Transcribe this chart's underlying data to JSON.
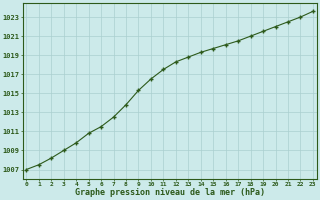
{
  "x": [
    0,
    1,
    2,
    3,
    4,
    5,
    6,
    7,
    8,
    9,
    10,
    11,
    12,
    13,
    14,
    15,
    16,
    17,
    18,
    19,
    20,
    21,
    22,
    23
  ],
  "y": [
    1007.0,
    1007.5,
    1008.2,
    1009.0,
    1009.8,
    1010.8,
    1011.5,
    1012.5,
    1013.8,
    1015.3,
    1016.5,
    1017.5,
    1018.3,
    1018.8,
    1019.3,
    1019.7,
    1020.1,
    1020.5,
    1021.0,
    1021.5,
    1022.0,
    1022.5,
    1023.0,
    1023.6
  ],
  "line_color": "#2d5a1b",
  "marker": "+",
  "bg_color": "#cceaea",
  "grid_color": "#aacfcf",
  "xlabel": "Graphe pression niveau de la mer (hPa)",
  "xlabel_color": "#2d5a1b",
  "tick_color": "#2d5a1b",
  "ytick_labels": [
    1007,
    1009,
    1011,
    1013,
    1015,
    1017,
    1019,
    1021,
    1023
  ],
  "ylim": [
    1006.0,
    1024.5
  ],
  "xlim": [
    -0.3,
    23.3
  ],
  "xtick_labels": [
    0,
    1,
    2,
    3,
    4,
    5,
    6,
    7,
    8,
    9,
    10,
    11,
    12,
    13,
    14,
    15,
    16,
    17,
    18,
    19,
    20,
    21,
    22,
    23
  ]
}
